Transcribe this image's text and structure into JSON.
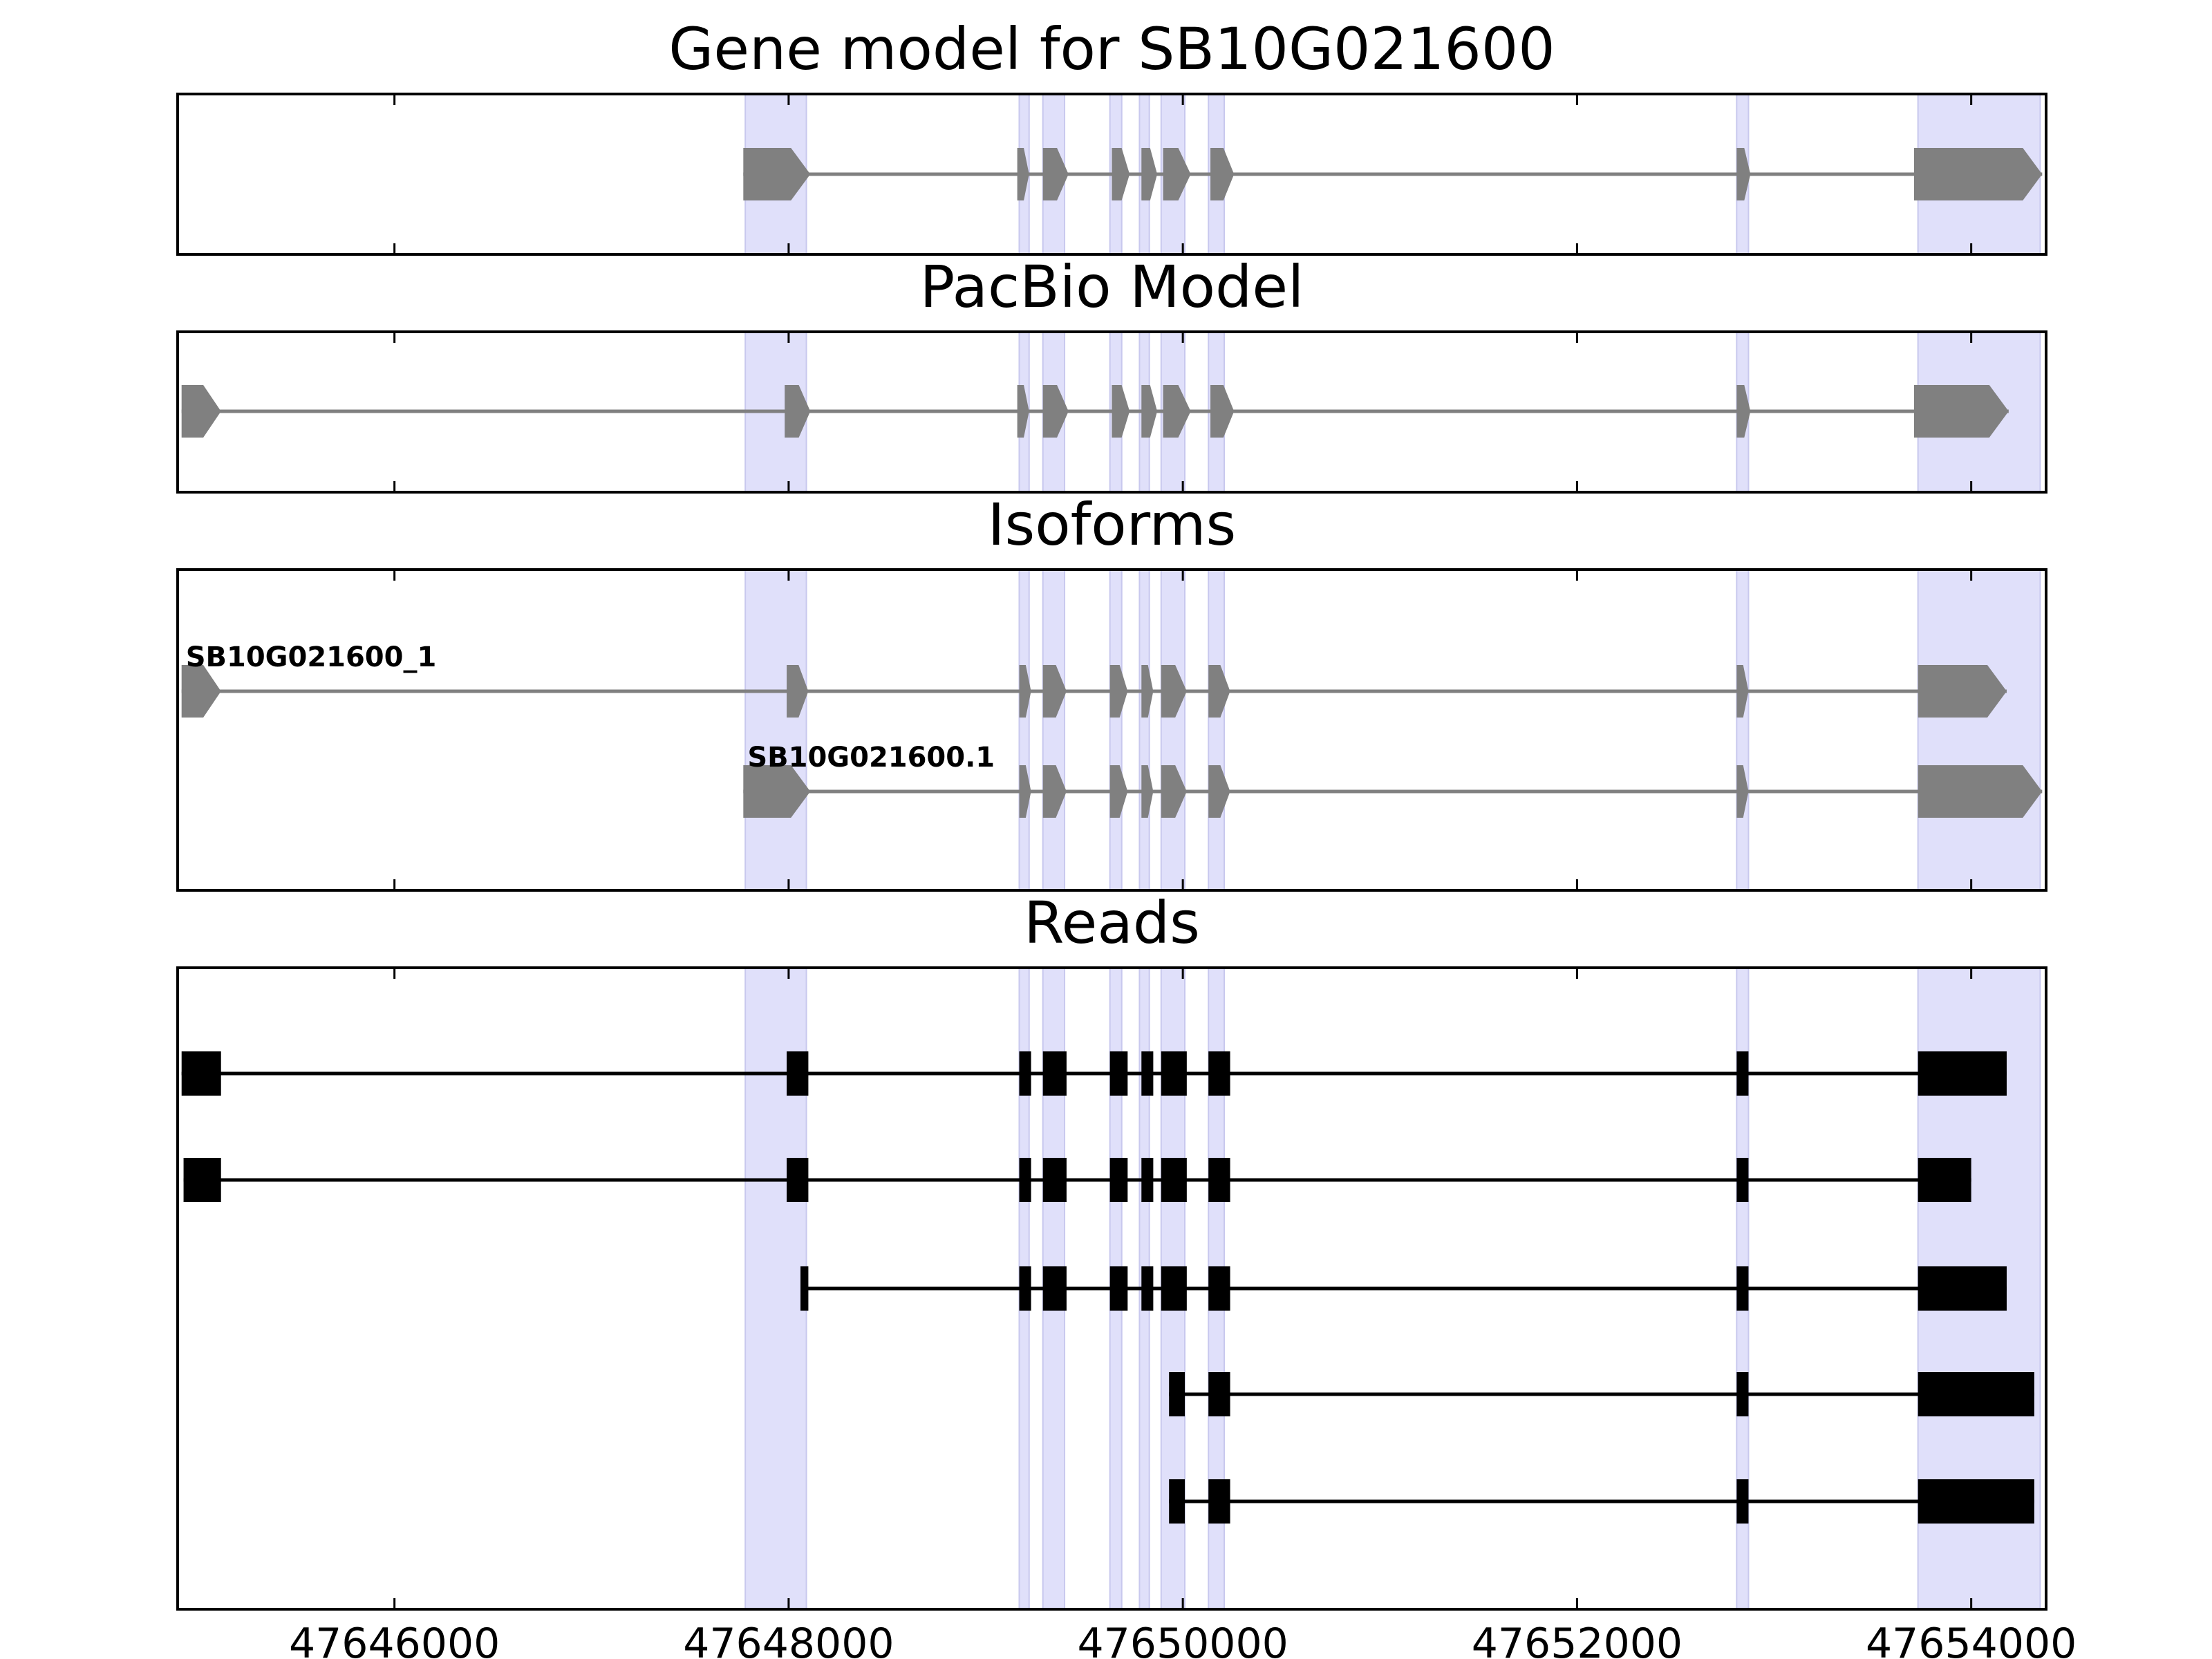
{
  "chart_data": {
    "type": "gene-track",
    "xlim": [
      47644900,
      47654380
    ],
    "x_ticks": [
      47646000,
      47648000,
      47650000,
      47652000,
      47654000
    ],
    "x_tick_labels": [
      "47646000",
      "47648000",
      "47650000",
      "47652000",
      "47654000"
    ],
    "highlight_color": "#e0e0fa",
    "highlight_regions": [
      [
        47647780,
        47648090
      ],
      [
        47649170,
        47649220
      ],
      [
        47649290,
        47649400
      ],
      [
        47649630,
        47649690
      ],
      [
        47649780,
        47649830
      ],
      [
        47649890,
        47650010
      ],
      [
        47650130,
        47650210
      ],
      [
        47652810,
        47652870
      ],
      [
        47653730,
        47654350
      ]
    ],
    "panels": [
      {
        "title": "Gene model for SB10G021600",
        "style": "arrow",
        "color": "#808080",
        "tracks": [
          {
            "label": "",
            "exons": [
              [
                47647770,
                47648110
              ],
              [
                47649160,
                47649220
              ],
              [
                47649290,
                47649420
              ],
              [
                47649640,
                47649730
              ],
              [
                47649790,
                47649870
              ],
              [
                47649900,
                47650040
              ],
              [
                47650140,
                47650260
              ],
              [
                47652810,
                47652880
              ],
              [
                47653710,
                47654360
              ]
            ]
          }
        ]
      },
      {
        "title": "PacBio Model",
        "style": "arrow",
        "color": "#808080",
        "tracks": [
          {
            "label": "",
            "exons": [
              [
                47644920,
                47645120
              ],
              [
                47647980,
                47648110
              ],
              [
                47649160,
                47649220
              ],
              [
                47649290,
                47649420
              ],
              [
                47649640,
                47649730
              ],
              [
                47649790,
                47649870
              ],
              [
                47649900,
                47650040
              ],
              [
                47650140,
                47650260
              ],
              [
                47652810,
                47652880
              ],
              [
                47653710,
                47654190
              ]
            ]
          }
        ]
      },
      {
        "title": "Isoforms",
        "style": "arrow",
        "color": "#808080",
        "tracks": [
          {
            "label": "SB10G021600_1",
            "exons": [
              [
                47644920,
                47645120
              ],
              [
                47647990,
                47648100
              ],
              [
                47649170,
                47649230
              ],
              [
                47649290,
                47649410
              ],
              [
                47649630,
                47649720
              ],
              [
                47649790,
                47649850
              ],
              [
                47649890,
                47650020
              ],
              [
                47650130,
                47650240
              ],
              [
                47652810,
                47652870
              ],
              [
                47653730,
                47654180
              ]
            ]
          },
          {
            "label": "SB10G021600.1",
            "exons": [
              [
                47647770,
                47648110
              ],
              [
                47649170,
                47649230
              ],
              [
                47649290,
                47649410
              ],
              [
                47649630,
                47649720
              ],
              [
                47649790,
                47649850
              ],
              [
                47649890,
                47650020
              ],
              [
                47650130,
                47650240
              ],
              [
                47652810,
                47652870
              ],
              [
                47653730,
                47654360
              ]
            ]
          }
        ]
      },
      {
        "title": "Reads",
        "style": "box",
        "color": "#000000",
        "tracks": [
          {
            "label": "",
            "exons": [
              [
                47644920,
                47645120
              ],
              [
                47647990,
                47648100
              ],
              [
                47649170,
                47649230
              ],
              [
                47649290,
                47649410
              ],
              [
                47649630,
                47649720
              ],
              [
                47649790,
                47649850
              ],
              [
                47649890,
                47650020
              ],
              [
                47650130,
                47650240
              ],
              [
                47652810,
                47652870
              ],
              [
                47653730,
                47654180
              ]
            ]
          },
          {
            "label": "",
            "exons": [
              [
                47644930,
                47645120
              ],
              [
                47647990,
                47648100
              ],
              [
                47649170,
                47649230
              ],
              [
                47649290,
                47649410
              ],
              [
                47649630,
                47649720
              ],
              [
                47649790,
                47649850
              ],
              [
                47649890,
                47650020
              ],
              [
                47650130,
                47650240
              ],
              [
                47652810,
                47652870
              ],
              [
                47653730,
                47654000
              ]
            ]
          },
          {
            "label": "",
            "exons": [
              [
                47648060,
                47648100
              ],
              [
                47649170,
                47649230
              ],
              [
                47649290,
                47649410
              ],
              [
                47649630,
                47649720
              ],
              [
                47649790,
                47649850
              ],
              [
                47649890,
                47650020
              ],
              [
                47650130,
                47650240
              ],
              [
                47652810,
                47652870
              ],
              [
                47653730,
                47654180
              ]
            ]
          },
          {
            "label": "",
            "exons": [
              [
                47649930,
                47650010
              ],
              [
                47650130,
                47650240
              ],
              [
                47652810,
                47652870
              ],
              [
                47653730,
                47654320
              ]
            ]
          },
          {
            "label": "",
            "exons": [
              [
                47649930,
                47650010
              ],
              [
                47650130,
                47650240
              ],
              [
                47652810,
                47652870
              ],
              [
                47653730,
                47654320
              ]
            ]
          }
        ]
      }
    ]
  }
}
